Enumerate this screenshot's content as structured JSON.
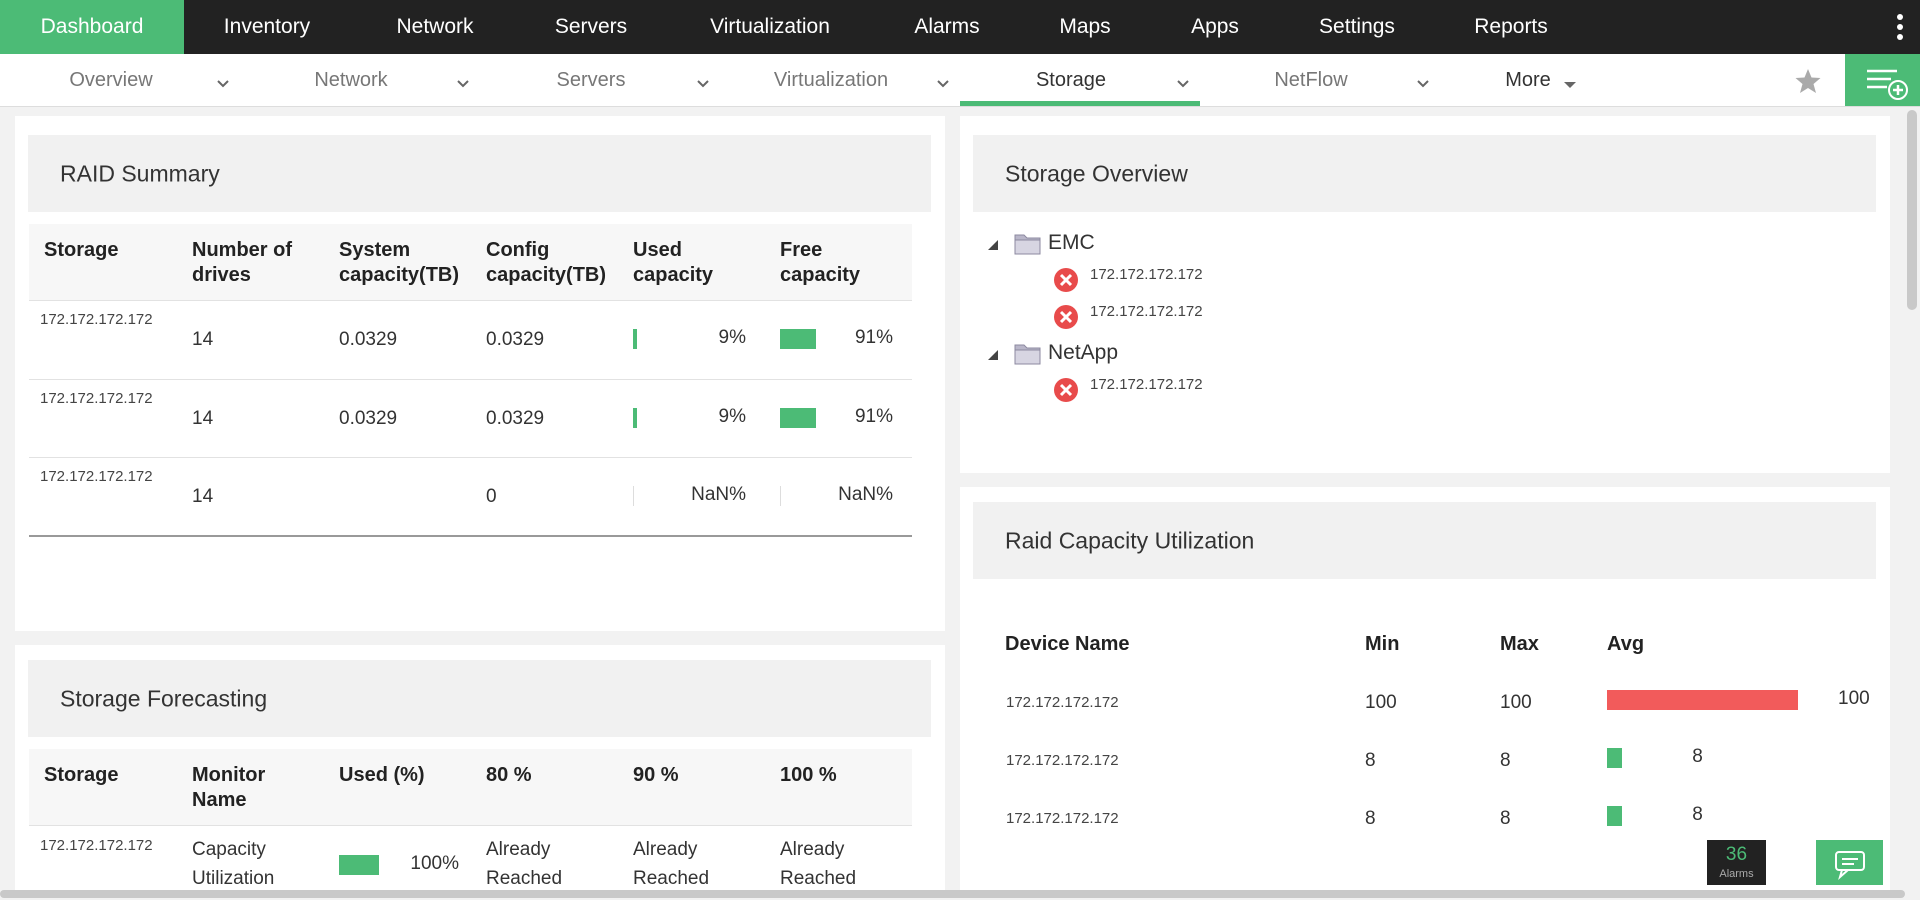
{
  "nav": {
    "tabs": [
      "Dashboard",
      "Inventory",
      "Network",
      "Servers",
      "Virtualization",
      "Alarms",
      "Maps",
      "Apps",
      "Settings",
      "Reports"
    ]
  },
  "subnav": {
    "tabs": [
      "Overview",
      "Network",
      "Servers",
      "Virtualization",
      "Storage",
      "NetFlow",
      "More"
    ]
  },
  "raid_summary": {
    "title": "RAID Summary",
    "columns": [
      "Storage",
      "Number of drives",
      "System capacity(TB)",
      "Config capacity(TB)",
      "Used capacity",
      "Free capacity"
    ],
    "rows": [
      [
        "172.172.172.172",
        "14",
        "0.0329",
        "0.0329",
        "9%",
        "91%"
      ],
      [
        "172.172.172.172",
        "14",
        "0.0329",
        "0.0329",
        "9%",
        "91%"
      ],
      [
        "172.172.172.172",
        "14",
        null,
        "0",
        "NaN%",
        "NaN%"
      ]
    ]
  },
  "storage_forecasting": {
    "title": "Storage Forecasting",
    "columns": [
      "Storage",
      "Monitor Name",
      "Used (%)",
      "80 %",
      "90 %",
      "100 %"
    ],
    "rows": [
      [
        "172.172.172.172",
        "Capacity Utilization",
        "100%",
        "Already Reached",
        "Already Reached",
        "Already Reached"
      ]
    ]
  },
  "storage_overview": {
    "title": "Storage Overview",
    "tree": [
      {
        "label": "EMC",
        "children": [
          "172.172.172.172",
          "172.172.172.172"
        ]
      },
      {
        "label": "NetApp",
        "children": [
          "172.172.172.172"
        ]
      }
    ]
  },
  "raid_capacity": {
    "title": "Raid Capacity Utilization",
    "columns": [
      "Device Name",
      "Min",
      "Max",
      "Avg"
    ],
    "rows": [
      [
        "172.172.172.172",
        100,
        100,
        100
      ],
      [
        "172.172.172.172",
        8,
        8,
        8
      ],
      [
        "172.172.172.172",
        8,
        8,
        8
      ]
    ]
  },
  "alarms": {
    "count": 36,
    "label": "Alarms"
  }
}
